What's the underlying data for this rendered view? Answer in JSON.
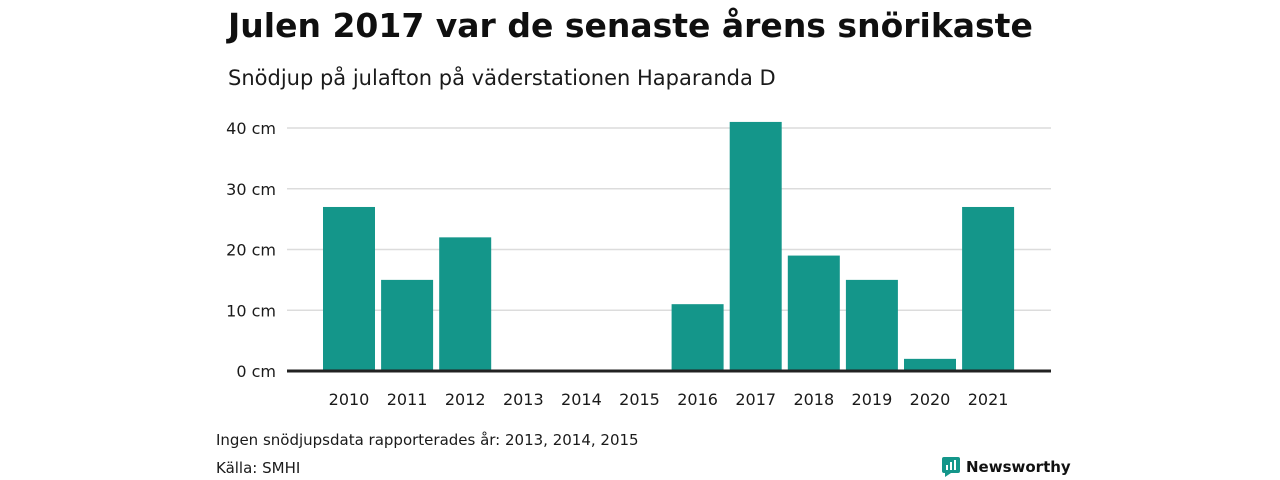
{
  "title": "Julen 2017 var de senaste årens snörikaste",
  "subtitle": "Snödjup på julafton på väderstationen Haparanda D",
  "footnote": "Ingen snödjupsdata rapporterades år: 2013, 2014, 2015",
  "source": "Källa: SMHI",
  "brand": {
    "name": "Newsworthy",
    "icon": "newsworthy-logo-icon"
  },
  "colors": {
    "bar": "#14968a",
    "grid": "#dcdcdc",
    "axis": "#222222",
    "brand": "#14968a"
  },
  "chart_data": {
    "type": "bar",
    "categories": [
      "2010",
      "2011",
      "2012",
      "2013",
      "2014",
      "2015",
      "2016",
      "2017",
      "2018",
      "2019",
      "2020",
      "2021"
    ],
    "values": [
      27,
      15,
      22,
      null,
      null,
      null,
      11,
      41,
      19,
      15,
      2,
      27
    ],
    "ylim": [
      0,
      40
    ],
    "yticks": [
      0,
      10,
      20,
      30,
      40
    ],
    "ytick_labels": [
      "0 cm",
      "10 cm",
      "20 cm",
      "30 cm",
      "40 cm"
    ],
    "grid": true,
    "legend": "none",
    "xlabel": "",
    "ylabel": ""
  }
}
